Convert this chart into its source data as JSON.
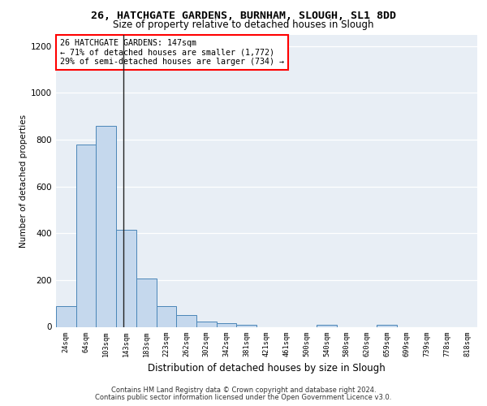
{
  "title_line1": "26, HATCHGATE GARDENS, BURNHAM, SLOUGH, SL1 8DD",
  "title_line2": "Size of property relative to detached houses in Slough",
  "xlabel": "Distribution of detached houses by size in Slough",
  "ylabel": "Number of detached properties",
  "categories": [
    "24sqm",
    "64sqm",
    "103sqm",
    "143sqm",
    "183sqm",
    "223sqm",
    "262sqm",
    "302sqm",
    "342sqm",
    "381sqm",
    "421sqm",
    "461sqm",
    "500sqm",
    "540sqm",
    "580sqm",
    "620sqm",
    "659sqm",
    "699sqm",
    "739sqm",
    "778sqm",
    "818sqm"
  ],
  "values": [
    90,
    780,
    860,
    415,
    205,
    90,
    52,
    22,
    15,
    10,
    0,
    0,
    0,
    10,
    0,
    0,
    10,
    0,
    0,
    0,
    0
  ],
  "bar_color": "#c5d8ed",
  "bar_edge_color": "#4a86b8",
  "annotation_box_text": "26 HATCHGATE GARDENS: 147sqm\n← 71% of detached houses are smaller (1,772)\n29% of semi-detached houses are larger (734) →",
  "vline_x": 2.85,
  "ylim": [
    0,
    1250
  ],
  "yticks": [
    0,
    200,
    400,
    600,
    800,
    1000,
    1200
  ],
  "footer_line1": "Contains HM Land Registry data © Crown copyright and database right 2024.",
  "footer_line2": "Contains public sector information licensed under the Open Government Licence v3.0.",
  "background_color": "#e8eef5"
}
